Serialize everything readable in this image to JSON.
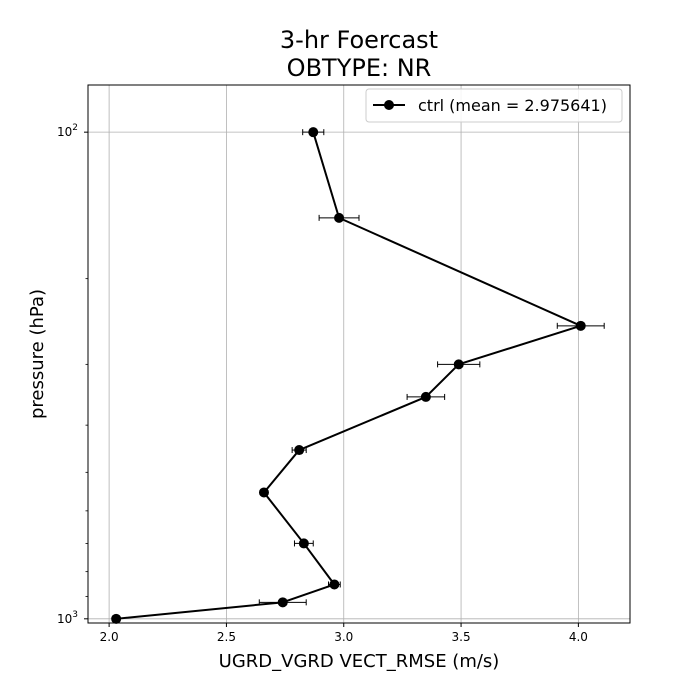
{
  "chart_data": {
    "type": "line",
    "title": "3-hr Foercast",
    "subtitle": "OBTYPE: NR",
    "xlabel": "UGRD_VGRD VECT_RMSE (m/s)",
    "ylabel": "pressure (hPa)",
    "xlim": [
      1.91,
      4.22
    ],
    "ylim": [
      1020,
      80
    ],
    "y_scale": "log",
    "y_inverted": true,
    "x_ticks": [
      2.0,
      2.5,
      3.0,
      3.5,
      4.0
    ],
    "x_tick_labels": [
      "2.0",
      "2.5",
      "3.0",
      "3.5",
      "4.0"
    ],
    "y_major_ticks": [
      100,
      1000
    ],
    "y_minor_ticks": [
      200,
      300,
      400,
      500,
      600,
      700,
      800,
      900
    ],
    "y_tick_labels": [
      {
        "base": "10",
        "exp": "2"
      },
      {
        "base": "10",
        "exp": "3"
      }
    ],
    "grid": true,
    "legend_position": "top-right",
    "color": "#000000",
    "series": [
      {
        "name": "ctrl (mean = 2.975641)",
        "points": [
          {
            "y": 100,
            "x": 2.87,
            "err": 0.045
          },
          {
            "y": 150,
            "x": 2.98,
            "err": 0.085
          },
          {
            "y": 250,
            "x": 4.01,
            "err": 0.1
          },
          {
            "y": 300,
            "x": 3.49,
            "err": 0.09
          },
          {
            "y": 350,
            "x": 3.35,
            "err": 0.08
          },
          {
            "y": 450,
            "x": 2.81,
            "err": 0.03
          },
          {
            "y": 550,
            "x": 2.66,
            "err": 0.015
          },
          {
            "y": 700,
            "x": 2.83,
            "err": 0.04
          },
          {
            "y": 850,
            "x": 2.96,
            "err": 0.025
          },
          {
            "y": 925,
            "x": 2.74,
            "err": 0.1
          },
          {
            "y": 1000,
            "x": 2.03,
            "err": 0.015
          }
        ]
      }
    ]
  }
}
